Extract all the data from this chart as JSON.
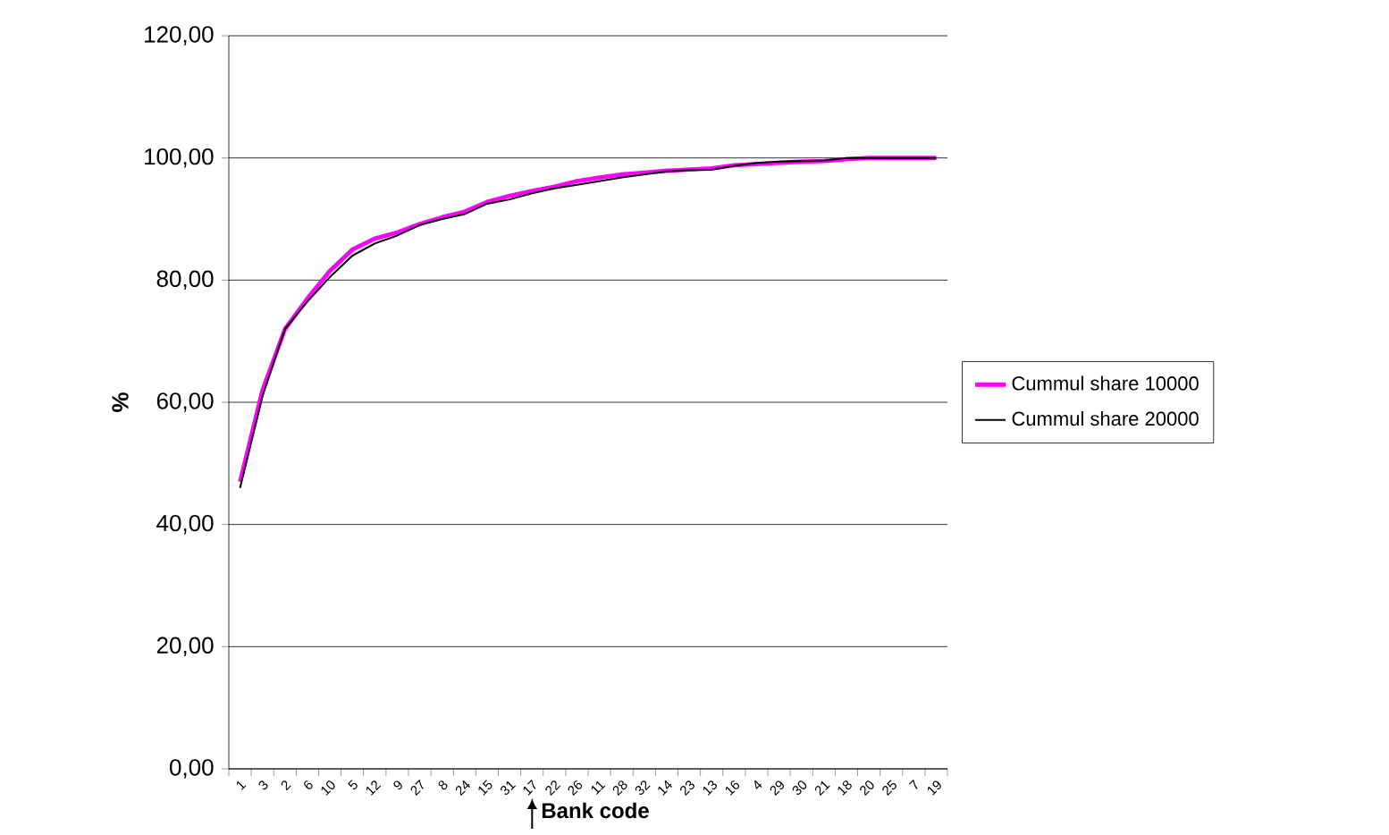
{
  "chart_data": {
    "type": "line",
    "categories": [
      "1",
      "3",
      "2",
      "6",
      "10",
      "5",
      "12",
      "9",
      "27",
      "8",
      "24",
      "15",
      "31",
      "17",
      "22",
      "26",
      "11",
      "28",
      "32",
      "14",
      "23",
      "13",
      "16",
      "4",
      "29",
      "30",
      "21",
      "18",
      "20",
      "25",
      "7",
      "19"
    ],
    "series": [
      {
        "name": "Cummul share 10000",
        "color": "#ff00ff",
        "values": [
          47,
          62,
          72,
          77,
          81.5,
          85,
          86.8,
          87.8,
          89.2,
          90.3,
          91.2,
          92.8,
          93.8,
          94.6,
          95.3,
          96.2,
          96.8,
          97.3,
          97.6,
          97.9,
          98.1,
          98.3,
          98.8,
          99.0,
          99.2,
          99.4,
          99.5,
          99.8,
          100,
          100,
          100,
          100
        ]
      },
      {
        "name": "Cummul share 20000",
        "color": "#000000",
        "values": [
          46,
          61,
          72,
          76.5,
          80.5,
          84,
          86,
          87.3,
          89,
          90,
          90.8,
          92.5,
          93.2,
          94.2,
          95,
          95.6,
          96.2,
          96.8,
          97.3,
          97.8,
          98,
          98.1,
          98.7,
          99.2,
          99.4,
          99.5,
          99.6,
          100,
          100,
          100,
          100,
          100
        ]
      }
    ],
    "ylim": [
      0,
      120
    ],
    "yticks": [
      {
        "value": 0,
        "label": "0,00"
      },
      {
        "value": 20,
        "label": "20,00"
      },
      {
        "value": 40,
        "label": "40,00"
      },
      {
        "value": 60,
        "label": "60,00"
      },
      {
        "value": 80,
        "label": "80,00"
      },
      {
        "value": 100,
        "label": "100,00"
      },
      {
        "value": 120,
        "label": "120,00"
      }
    ],
    "xlabel": "Bank code",
    "ylabel": "%",
    "grid": "y",
    "legend": "right",
    "marker": "none",
    "line_style": "solid"
  }
}
